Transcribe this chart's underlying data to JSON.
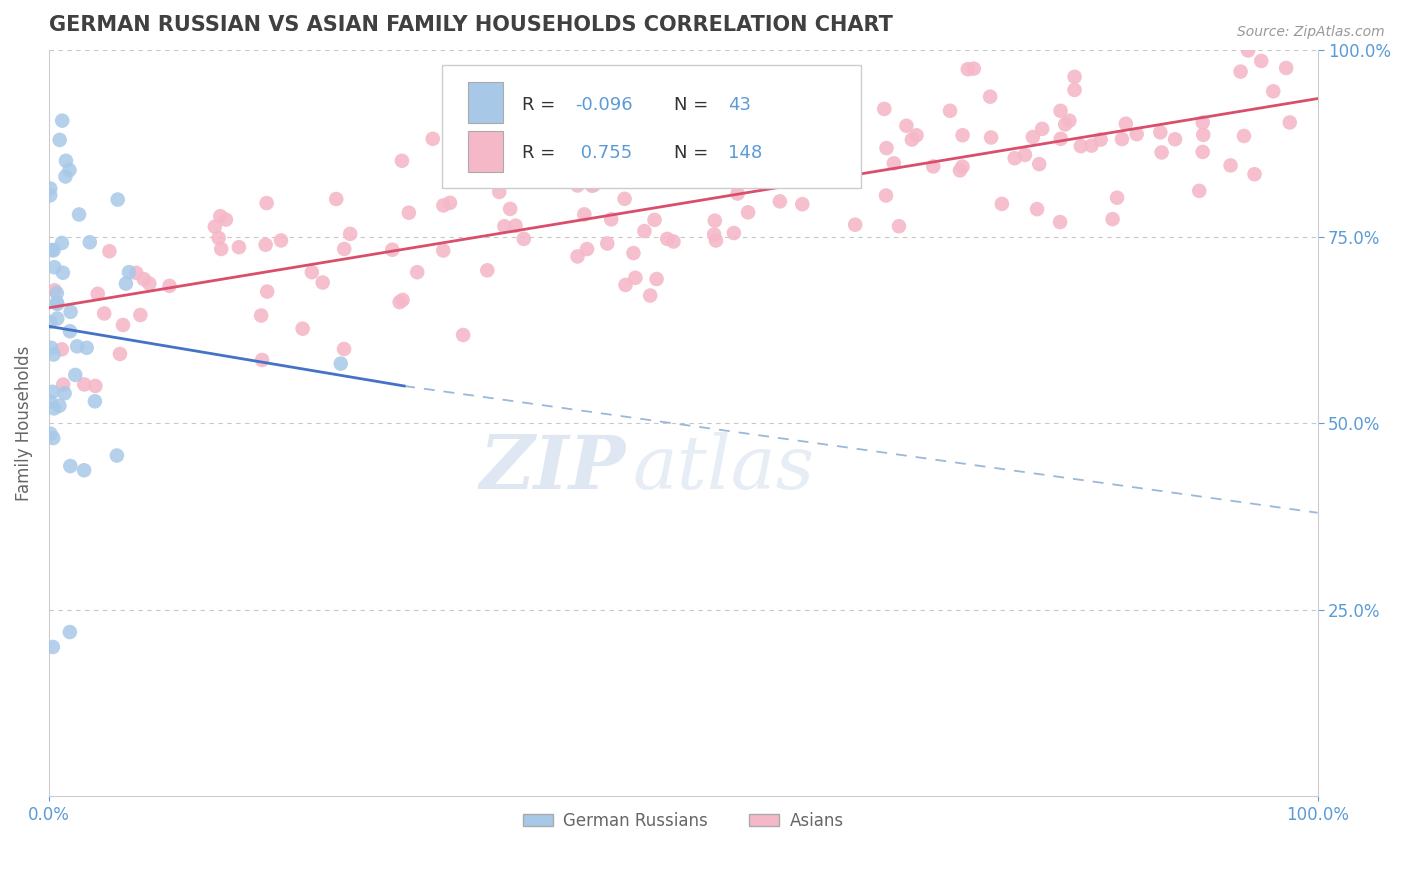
{
  "title": "GERMAN RUSSIAN VS ASIAN FAMILY HOUSEHOLDS CORRELATION CHART",
  "source": "Source: ZipAtlas.com",
  "ylabel": "Family Households",
  "watermark": "ZIPatlas",
  "blue_color": "#a8c8e8",
  "pink_color": "#f5b8c8",
  "blue_line_color": "#4472c4",
  "pink_line_color": "#d94f6b",
  "dashed_line_color": "#9ab8d8",
  "title_color": "#404040",
  "axis_color": "#5b9bd5",
  "legend_color1": "#a8c8e8",
  "legend_color2": "#f5b8c8",
  "background_color": "#ffffff",
  "grid_color": "#c8c8c8",
  "right_axis_color": "#5b9bd5",
  "source_color": "#999999",
  "ylabel_color": "#666666",
  "bottom_legend_color": "#666666"
}
